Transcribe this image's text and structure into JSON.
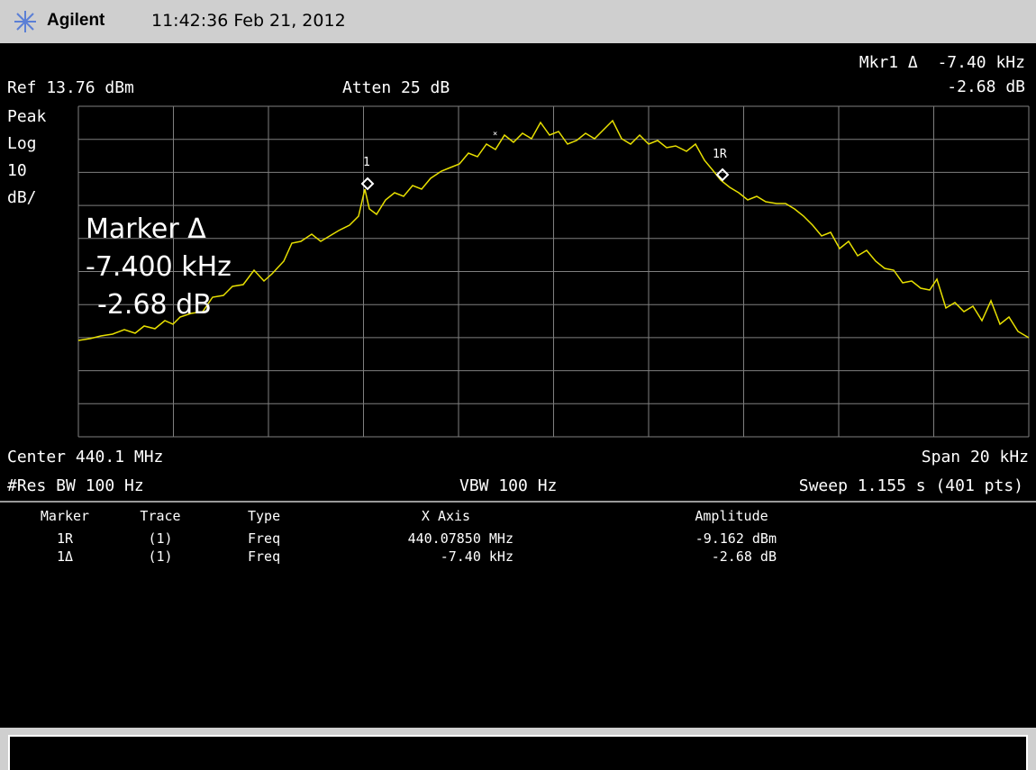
{
  "header": {
    "brand": "Agilent",
    "timestamp": "11:42:36  Feb 21, 2012"
  },
  "display": {
    "marker_readout": {
      "label": "Mkr1 Δ",
      "x": "-7.40 kHz",
      "y": "-2.68 dB"
    },
    "ref": "Ref 13.76 dBm",
    "atten": "Atten 25 dB",
    "scale": [
      "Peak",
      "Log",
      "10",
      "dB/"
    ],
    "marker_box": [
      "Marker Δ",
      "-7.400 kHz",
      "-2.68 dB"
    ],
    "marker_labels": [
      "1",
      "1R"
    ],
    "center": "Center 440.1 MHz",
    "span": "Span 20 kHz",
    "rbw": "#Res BW 100 Hz",
    "vbw": "VBW 100 Hz",
    "sweep": "Sweep 1.155 s (401 pts)"
  },
  "marker_table": {
    "columns": [
      "Marker",
      "Trace",
      "Type",
      "X Axis",
      "Amplitude"
    ],
    "rows": [
      [
        "1R",
        "(1)",
        "Freq",
        "440.07850 MHz",
        "-9.162 dBm"
      ],
      [
        "1Δ",
        "(1)",
        "Freq",
        "-7.40 kHz",
        "-2.68 dB"
      ]
    ]
  }
}
